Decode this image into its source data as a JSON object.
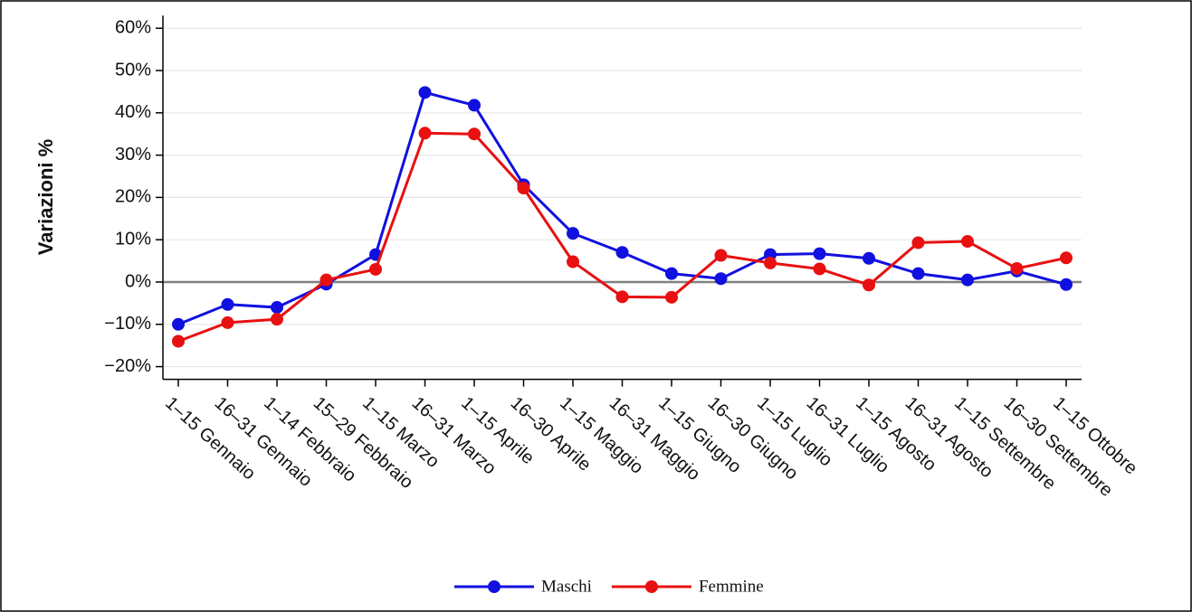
{
  "chart_data": {
    "type": "line",
    "y_label": "Variazioni %",
    "categories": [
      "1–15 Gennaio",
      "16–31 Gennaio",
      "1–14 Febbraio",
      "15–29 Febbraio",
      "1–15 Marzo",
      "16–31 Marzo",
      "1–15 Aprile",
      "16–30 Aprile",
      "1–15 Maggio",
      "16–31 Maggio",
      "1–15 Giugno",
      "16–30 Giugno",
      "1–15 Luglio",
      "16–31 Luglio",
      "1–15 Agosto",
      "16–31 Agosto",
      "1–15 Settembre",
      "16–30 Settembre",
      "1–15 Ottobre"
    ],
    "series": [
      {
        "name": "Maschi",
        "color": "#1010e0",
        "values": [
          -10,
          -5.3,
          -6,
          -0.5,
          6.5,
          44.8,
          41.8,
          23,
          11.5,
          7,
          2,
          0.8,
          6.5,
          6.7,
          5.6,
          2,
          0.5,
          2.6,
          -0.6
        ]
      },
      {
        "name": "Femmine",
        "color": "#e81010",
        "values": [
          -14,
          -9.6,
          -8.8,
          0.5,
          3,
          35.2,
          35,
          22.2,
          4.8,
          -3.5,
          -3.6,
          6.3,
          4.5,
          3.1,
          -0.7,
          9.3,
          9.6,
          3.2,
          5.7
        ]
      }
    ],
    "ylim": [
      -23,
      63
    ],
    "yticks": [
      {
        "value": -20,
        "label": "−20%"
      },
      {
        "value": -10,
        "label": "−10%"
      },
      {
        "value": 0,
        "label": "0%"
      },
      {
        "value": 10,
        "label": "10%"
      },
      {
        "value": 20,
        "label": "20%"
      },
      {
        "value": 30,
        "label": "30%"
      },
      {
        "value": 40,
        "label": "40%"
      },
      {
        "value": 50,
        "label": "50%"
      },
      {
        "value": 60,
        "label": "60%"
      }
    ],
    "grid": true,
    "legend": "bottom"
  }
}
